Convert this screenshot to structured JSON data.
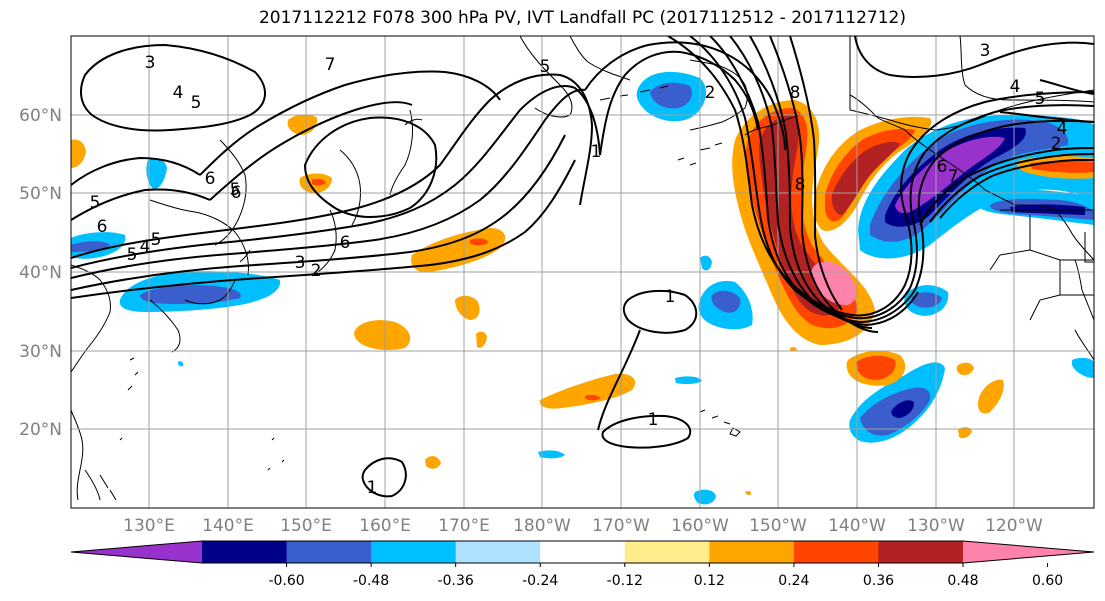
{
  "title": "2017112212 F078 300 hPa PV, IVT Landfall PC (2017112512 - 2017112712)",
  "latitude_labels": [
    "60°N",
    "50°N",
    "40°N",
    "30°N",
    "20°N"
  ],
  "longitude_labels": [
    "130°E",
    "140°E",
    "150°E",
    "160°E",
    "170°E",
    "180°W",
    "170°W",
    "160°W",
    "150°W",
    "140°W",
    "130°W",
    "120°W"
  ],
  "colorbar": {
    "tick_labels": [
      "-0.60",
      "-0.48",
      "-0.36",
      "-0.24",
      "-0.12",
      "0.12",
      "0.24",
      "0.36",
      "0.48",
      "0.60"
    ],
    "colors": [
      "#9932cc",
      "#00008b",
      "#3a5fcd",
      "#00bfff",
      "#b0e2ff",
      "#ffffff",
      "#ffec8b",
      "#ffa500",
      "#ff4500",
      "#b22222",
      "#ff82ab"
    ]
  },
  "contour_labels": [
    "3",
    "4",
    "5",
    "7",
    "6",
    "5",
    "5",
    "6",
    "5",
    "4",
    "5",
    "6",
    "3",
    "2",
    "1",
    "1",
    "1",
    "1",
    "2",
    "5",
    "8",
    "8",
    "3",
    "4",
    "5",
    "4",
    "2",
    "6",
    "7",
    "6"
  ],
  "colors": {
    "land_outline": "#000000",
    "grid": "#a0a0a0",
    "contour": "#000000"
  }
}
